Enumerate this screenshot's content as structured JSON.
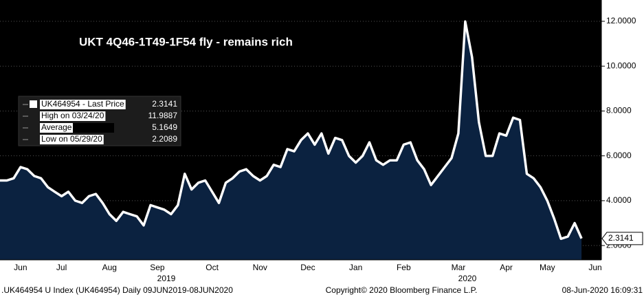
{
  "chart_data": {
    "type": "area-line",
    "title": "UKT 4Q46-1T49-1F54 fly - remains rich",
    "categories": [
      null,
      null,
      null,
      "Jun",
      null,
      null,
      null,
      null,
      null,
      "Jul",
      null,
      null,
      null,
      null,
      null,
      null,
      "Aug",
      null,
      null,
      null,
      null,
      null,
      null,
      "Sep",
      null,
      null,
      null,
      null,
      null,
      null,
      null,
      "Oct",
      null,
      null,
      null,
      null,
      null,
      null,
      "Nov",
      null,
      null,
      null,
      null,
      null,
      null,
      "Dec",
      null,
      null,
      null,
      null,
      null,
      null,
      "Jan",
      null,
      null,
      null,
      null,
      null,
      null,
      "Feb",
      null,
      null,
      null,
      null,
      null,
      null,
      null,
      "Mar",
      null,
      null,
      null,
      null,
      null,
      null,
      "Apr",
      null,
      null,
      null,
      null,
      null,
      "May",
      null,
      null,
      null,
      null,
      null,
      null,
      "Jun"
    ],
    "values": [
      4.9,
      4.9,
      5.0,
      5.5,
      5.4,
      5.1,
      5.0,
      4.6,
      4.4,
      4.2,
      4.4,
      4.0,
      3.9,
      4.2,
      4.3,
      3.9,
      3.4,
      3.1,
      3.5,
      3.4,
      3.3,
      2.9,
      3.8,
      3.7,
      3.6,
      3.4,
      3.8,
      5.2,
      4.5,
      4.8,
      4.9,
      4.4,
      3.9,
      4.8,
      5.0,
      5.3,
      5.4,
      5.1,
      4.9,
      5.1,
      5.6,
      5.5,
      6.3,
      6.2,
      6.7,
      7.0,
      6.5,
      7.0,
      6.1,
      6.8,
      6.7,
      6.0,
      5.7,
      6.0,
      6.6,
      5.8,
      5.6,
      5.8,
      5.8,
      6.5,
      6.6,
      5.8,
      5.4,
      4.7,
      5.1,
      5.5,
      5.9,
      7.0,
      11.99,
      10.4,
      7.5,
      6.0,
      6.0,
      7.0,
      6.9,
      7.7,
      7.6,
      5.2,
      5.0,
      4.6,
      4.0,
      3.2,
      2.3,
      2.4,
      3.0,
      2.3141,
      null,
      null
    ],
    "color": "#ffffff",
    "area_color": "#0b2240",
    "ylim": [
      1.36,
      12.95
    ],
    "yticks": [
      {
        "value": 2,
        "label": "2.0000"
      },
      {
        "value": 4,
        "label": "4.0000"
      },
      {
        "value": 6,
        "label": "6.0000"
      },
      {
        "value": 8,
        "label": "8.0000"
      },
      {
        "value": 10,
        "label": "10.0000"
      },
      {
        "value": 12,
        "label": "12.0000"
      }
    ],
    "grid": true,
    "year_labels": [
      "2019",
      "2020"
    ],
    "last_price_label": "2.3141",
    "legend": [
      {
        "label": "UK464954 - Last Price",
        "value": "2.3141"
      },
      {
        "label": "High on 03/24/20",
        "value": "11.9887"
      },
      {
        "label": "Average",
        "value": "5.1649"
      },
      {
        "label": "Low on 05/29/20",
        "value": "2.2089"
      }
    ],
    "footer": {
      "left": ".UK464954 U Index (UK464954)  Daily 09JUN2019-08JUN2020",
      "center": "Copyright© 2020 Bloomberg Finance L.P.",
      "right": "08-Jun-2020 16:09:31"
    }
  }
}
